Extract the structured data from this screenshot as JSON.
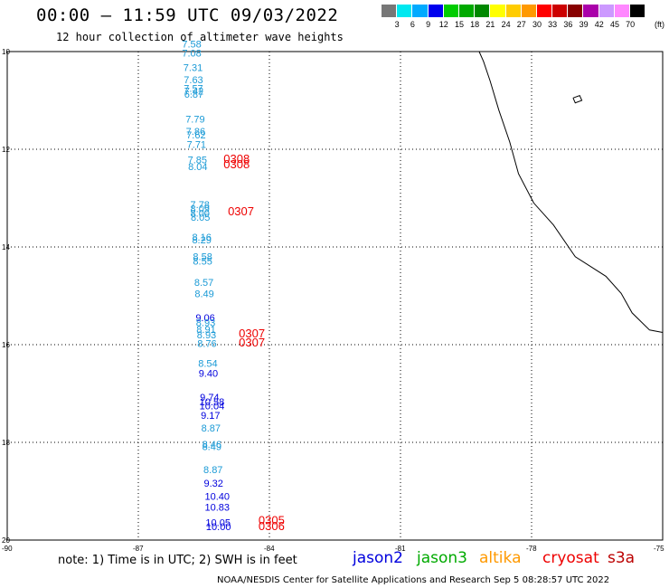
{
  "header": {
    "title": "00:00 – 11:59 UTC 09/03/2022",
    "subtitle": "12 hour collection of altimeter wave heights"
  },
  "color_scale": {
    "colors": [
      "#777777",
      "#00e8f0",
      "#00aaff",
      "#0000ee",
      "#00cc00",
      "#00aa00",
      "#008800",
      "#ffff00",
      "#ffcc00",
      "#ff9900",
      "#ff0000",
      "#cc0000",
      "#880000",
      "#aa00aa",
      "#cc99ff",
      "#ff88ff",
      "#000000"
    ],
    "labels": [
      "3",
      "6",
      "9",
      "12",
      "15",
      "18",
      "21",
      "24",
      "27",
      "30",
      "33",
      "36",
      "39",
      "42",
      "45",
      "70"
    ],
    "unit": "(ft)"
  },
  "axes": {
    "lat_labels": [
      "10",
      "12",
      "14",
      "16",
      "18",
      "20"
    ],
    "lon_labels": [
      "-90",
      "-87",
      "-84",
      "-81",
      "-78",
      "-75"
    ]
  },
  "satellite_colors": {
    "jason2": "#0000dd",
    "jason3": "#00aa00",
    "altika": "#ff9900",
    "cryosat": "#ee0000",
    "s3a": "#bb0000",
    "track": "#1a9ad6"
  },
  "track": {
    "points": [
      {
        "v": "7.58",
        "lat": 9.92,
        "lon": -86.0,
        "sat": "track"
      },
      {
        "v": "7.08",
        "lat": 10.1,
        "lon": -86.0,
        "sat": "track"
      },
      {
        "v": "7.31",
        "lat": 10.4,
        "lon": -85.97,
        "sat": "track"
      },
      {
        "v": "7.63",
        "lat": 10.65,
        "lon": -85.96,
        "sat": "track"
      },
      {
        "v": "7.57",
        "lat": 10.82,
        "lon": -85.96,
        "sat": "track"
      },
      {
        "v": "7.42",
        "lat": 10.88,
        "lon": -85.95,
        "sat": "track"
      },
      {
        "v": "6.87",
        "lat": 10.94,
        "lon": -85.95,
        "sat": "track"
      },
      {
        "v": "7.79",
        "lat": 11.45,
        "lon": -85.92,
        "sat": "track"
      },
      {
        "v": "7.86",
        "lat": 11.7,
        "lon": -85.91,
        "sat": "track"
      },
      {
        "v": "7.62",
        "lat": 11.78,
        "lon": -85.9,
        "sat": "track"
      },
      {
        "v": "7.71",
        "lat": 11.97,
        "lon": -85.89,
        "sat": "track"
      },
      {
        "v": "7.85",
        "lat": 12.29,
        "lon": -85.87,
        "sat": "track"
      },
      {
        "v": "8.04",
        "lat": 12.43,
        "lon": -85.86,
        "sat": "track"
      },
      {
        "v": "7.78",
        "lat": 13.2,
        "lon": -85.81,
        "sat": "track"
      },
      {
        "v": "8.09",
        "lat": 13.29,
        "lon": -85.81,
        "sat": "track"
      },
      {
        "v": "8.00",
        "lat": 13.38,
        "lon": -85.81,
        "sat": "track"
      },
      {
        "v": "8.05",
        "lat": 13.46,
        "lon": -85.8,
        "sat": "track"
      },
      {
        "v": "8.16",
        "lat": 13.87,
        "lon": -85.77,
        "sat": "track"
      },
      {
        "v": "8.29",
        "lat": 13.93,
        "lon": -85.77,
        "sat": "track"
      },
      {
        "v": "8.58",
        "lat": 14.27,
        "lon": -85.75,
        "sat": "track"
      },
      {
        "v": "8.55",
        "lat": 14.36,
        "lon": -85.75,
        "sat": "track"
      },
      {
        "v": "8.57",
        "lat": 14.8,
        "lon": -85.72,
        "sat": "track"
      },
      {
        "v": "8.49",
        "lat": 15.03,
        "lon": -85.71,
        "sat": "track"
      },
      {
        "v": "9.06",
        "lat": 15.52,
        "lon": -85.69,
        "sat": "jason2"
      },
      {
        "v": "8.93",
        "lat": 15.62,
        "lon": -85.68,
        "sat": "track"
      },
      {
        "v": "8.91",
        "lat": 15.76,
        "lon": -85.67,
        "sat": "track"
      },
      {
        "v": "8.93",
        "lat": 15.87,
        "lon": -85.66,
        "sat": "track"
      },
      {
        "v": "8.76",
        "lat": 16.05,
        "lon": -85.65,
        "sat": "track"
      },
      {
        "v": "8.54",
        "lat": 16.45,
        "lon": -85.63,
        "sat": "track"
      },
      {
        "v": "9.40",
        "lat": 16.66,
        "lon": -85.62,
        "sat": "jason2"
      },
      {
        "v": "9.74",
        "lat": 17.15,
        "lon": -85.59,
        "sat": "jason2"
      },
      {
        "v": "10.58",
        "lat": 17.24,
        "lon": -85.6,
        "sat": "jason2"
      },
      {
        "v": "10.04",
        "lat": 17.32,
        "lon": -85.6,
        "sat": "jason2"
      },
      {
        "v": "9.17",
        "lat": 17.52,
        "lon": -85.57,
        "sat": "jason2"
      },
      {
        "v": "8.87",
        "lat": 17.78,
        "lon": -85.56,
        "sat": "track"
      },
      {
        "v": "8.46",
        "lat": 18.11,
        "lon": -85.54,
        "sat": "track"
      },
      {
        "v": "8.49",
        "lat": 18.16,
        "lon": -85.54,
        "sat": "track"
      },
      {
        "v": "8.87",
        "lat": 18.63,
        "lon": -85.51,
        "sat": "track"
      },
      {
        "v": "9.32",
        "lat": 18.91,
        "lon": -85.5,
        "sat": "jason2"
      },
      {
        "v": "10.40",
        "lat": 19.18,
        "lon": -85.48,
        "sat": "jason2"
      },
      {
        "v": "10.83",
        "lat": 19.4,
        "lon": -85.48,
        "sat": "jason2"
      },
      {
        "v": "10.05",
        "lat": 19.71,
        "lon": -85.46,
        "sat": "jason2"
      },
      {
        "v": "10.00",
        "lat": 19.8,
        "lon": -85.45,
        "sat": "jason2"
      }
    ]
  },
  "cryosat_labels": [
    {
      "v": "0308",
      "lat": 12.28,
      "lon": -85.05
    },
    {
      "v": "0308",
      "lat": 12.39,
      "lon": -85.05
    },
    {
      "v": "0307",
      "lat": 13.35,
      "lon": -84.95
    },
    {
      "v": "0307",
      "lat": 15.85,
      "lon": -84.7
    },
    {
      "v": "0307",
      "lat": 16.04,
      "lon": -84.7
    },
    {
      "v": "0305",
      "lat": 19.68,
      "lon": -84.25
    },
    {
      "v": "0306",
      "lat": 19.8,
      "lon": -84.25
    }
  ],
  "coast": {
    "mainland": [
      [
        -79.2,
        10.0
      ],
      [
        -79.1,
        10.2
      ],
      [
        -78.95,
        10.6
      ],
      [
        -78.75,
        11.2
      ],
      [
        -78.5,
        11.85
      ],
      [
        -78.3,
        12.5
      ],
      [
        -77.95,
        13.1
      ],
      [
        -77.5,
        13.55
      ],
      [
        -77.0,
        14.2
      ],
      [
        -76.3,
        14.6
      ],
      [
        -75.95,
        14.95
      ],
      [
        -75.7,
        15.35
      ],
      [
        -75.3,
        15.7
      ],
      [
        -75.0,
        15.75
      ]
    ],
    "island": [
      [
        -77.05,
        10.95
      ],
      [
        -76.9,
        10.9
      ],
      [
        -76.85,
        11.0
      ],
      [
        -77.0,
        11.05
      ],
      [
        -77.05,
        10.95
      ]
    ]
  },
  "footer": {
    "note": "note:  1) Time is in UTC;  2) SWH is in feet",
    "credits": "NOAA/NESDIS Center for Satellite Applications and Research    Sep  5 08:28:57 UTC 2022",
    "legend": [
      {
        "label": "jason2",
        "color": "#0000dd"
      },
      {
        "label": "jason3",
        "color": "#00aa00"
      },
      {
        "label": "altika",
        "color": "#ff9900"
      },
      {
        "label": "cryosat",
        "color": "#ee0000"
      },
      {
        "label": "s3a",
        "color": "#bb0000"
      }
    ]
  }
}
